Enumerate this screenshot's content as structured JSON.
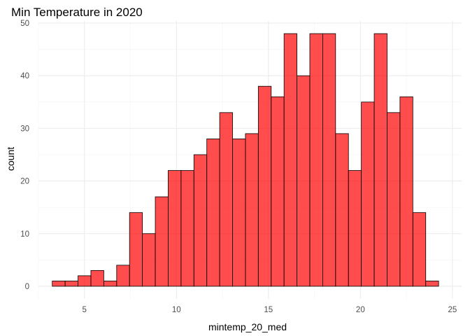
{
  "chart_data": {
    "type": "histogram",
    "title": "Min Temperature in 2020",
    "xlabel": "mintemp_20_med",
    "ylabel": "count",
    "xlim": [
      2.5,
      25.5
    ],
    "ylim": [
      -2.4,
      50.4
    ],
    "x_ticks": [
      5,
      10,
      15,
      20,
      25
    ],
    "x_minor_ticks": [
      2.5,
      7.5,
      12.5,
      17.5,
      22.5
    ],
    "y_ticks": [
      0,
      10,
      20,
      30,
      40,
      50
    ],
    "y_minor_ticks": [
      5,
      15,
      25,
      35,
      45
    ],
    "bin_width": 0.7,
    "bin_start": 3.25,
    "values": [
      1,
      1,
      2,
      3,
      1,
      4,
      14,
      10,
      17,
      22,
      22,
      25,
      28,
      33,
      28,
      29,
      38,
      36,
      48,
      40,
      48,
      48,
      29,
      22,
      35,
      48,
      33,
      36,
      14,
      1
    ],
    "fill_color": "#ff0000",
    "fill_opacity": 0.7,
    "bar_outline": "#000000"
  }
}
